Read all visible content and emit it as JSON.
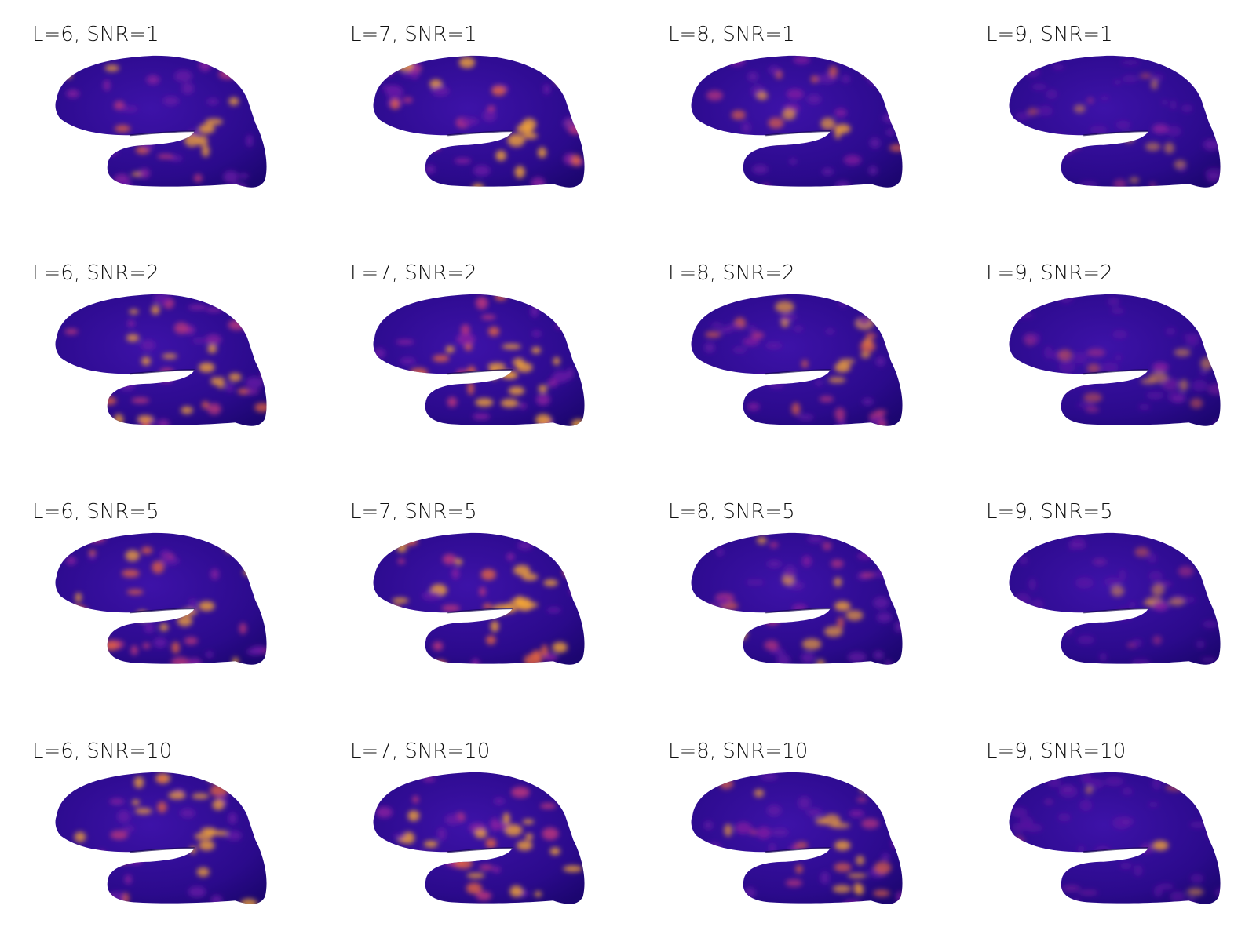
{
  "panels": [
    {
      "label": "L=6, SNR=1"
    },
    {
      "label": "L=7, SNR=1"
    },
    {
      "label": "L=8, SNR=1"
    },
    {
      "label": "L=9, SNR=1"
    },
    {
      "label": "L=6, SNR=2"
    },
    {
      "label": "L=7, SNR=2"
    },
    {
      "label": "L=8, SNR=2"
    },
    {
      "label": "L=9, SNR=2"
    },
    {
      "label": "L=6, SNR=5"
    },
    {
      "label": "L=7, SNR=5"
    },
    {
      "label": "L=8, SNR=5"
    },
    {
      "label": "L=9, SNR=5"
    },
    {
      "label": "L=6, SNR=10"
    },
    {
      "label": "L=7, SNR=10"
    },
    {
      "label": "L=8, SNR=10"
    },
    {
      "label": "L=9, SNR=10"
    }
  ]
}
